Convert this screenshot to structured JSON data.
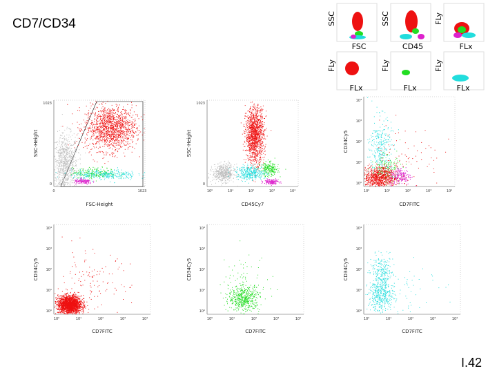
{
  "slide": {
    "title": "CD7/CD34",
    "page_number": "I.42"
  },
  "colors": {
    "lymphs": "#ee1111",
    "monos": "#22dd22",
    "gran_cyan": "#22dddd",
    "magenta": "#dd22cc",
    "gray": "#bdbdbd"
  },
  "gate_icons": [
    {
      "xlabel": "FSC",
      "ylabel": "SSC"
    },
    {
      "xlabel": "CD45",
      "ylabel": "SSC"
    },
    {
      "xlabel": "FLx",
      "ylabel": "FLy"
    },
    {
      "xlabel": "FLx",
      "ylabel": "FLy"
    },
    {
      "xlabel": "FLx",
      "ylabel": "FLy"
    },
    {
      "xlabel": "FLx",
      "ylabel": "FLy"
    }
  ],
  "chart_data": [
    {
      "type": "scatter",
      "id": "fsc-ssc",
      "xlabel": "FSC-Height",
      "ylabel": "SSC-Height",
      "xlim": [
        0,
        1023
      ],
      "ylim": [
        0,
        1023
      ],
      "xticks": [
        "0",
        "1023"
      ],
      "yticks": [
        "0",
        "1023"
      ],
      "series": [
        {
          "color": "gray",
          "cx": 0.12,
          "cy": 0.25,
          "sx": 0.07,
          "sy": 0.18,
          "n": 900
        },
        {
          "color": "lymphs",
          "cx": 0.62,
          "cy": 0.68,
          "sx": 0.14,
          "sy": 0.13,
          "n": 1400
        },
        {
          "color": "monos",
          "cx": 0.45,
          "cy": 0.16,
          "sx": 0.12,
          "sy": 0.03,
          "n": 200
        },
        {
          "color": "gran_cyan",
          "cx": 0.55,
          "cy": 0.14,
          "sx": 0.18,
          "sy": 0.03,
          "n": 300
        },
        {
          "color": "magenta",
          "cx": 0.32,
          "cy": 0.06,
          "sx": 0.05,
          "sy": 0.015,
          "n": 150
        }
      ]
    },
    {
      "type": "scatter",
      "id": "cd45-ssc",
      "xlabel": "CD45Cy7",
      "ylabel": "SSC-Height",
      "xscale": "log",
      "xlim": [
        1,
        10000
      ],
      "ylim": [
        0,
        1023
      ],
      "xticks": [
        "10⁰",
        "10¹",
        "10²",
        "10³",
        "10⁴"
      ],
      "yticks": [
        "0",
        "1023"
      ],
      "series": [
        {
          "color": "gray",
          "cx": 0.18,
          "cy": 0.16,
          "sx": 0.06,
          "sy": 0.05,
          "n": 500
        },
        {
          "color": "lymphs",
          "cx": 0.52,
          "cy": 0.6,
          "sx": 0.05,
          "sy": 0.16,
          "n": 1300
        },
        {
          "color": "monos",
          "cx": 0.68,
          "cy": 0.2,
          "sx": 0.05,
          "sy": 0.04,
          "n": 220
        },
        {
          "color": "gran_cyan",
          "cx": 0.48,
          "cy": 0.16,
          "sx": 0.08,
          "sy": 0.04,
          "n": 350
        },
        {
          "color": "magenta",
          "cx": 0.7,
          "cy": 0.06,
          "sx": 0.04,
          "sy": 0.015,
          "n": 150
        }
      ]
    },
    {
      "type": "scatter",
      "id": "cd7-cd34-all",
      "xlabel": "CD7FITC",
      "ylabel": "CD34Cy5",
      "xscale": "log",
      "yscale": "log",
      "xlim": [
        1,
        10000
      ],
      "ylim": [
        1,
        10000
      ],
      "xticks": [
        "10⁰",
        "10¹",
        "10²",
        "10³",
        "10⁴"
      ],
      "yticks": [
        "10⁰",
        "10¹",
        "10²",
        "10³",
        "10⁴"
      ],
      "series": [
        {
          "color": "gran_cyan",
          "cx": 0.18,
          "cy": 0.42,
          "sx": 0.06,
          "sy": 0.18,
          "n": 300
        },
        {
          "color": "monos",
          "cx": 0.24,
          "cy": 0.18,
          "sx": 0.08,
          "sy": 0.08,
          "n": 200
        },
        {
          "color": "lymphs",
          "cx": 0.16,
          "cy": 0.1,
          "sx": 0.1,
          "sy": 0.06,
          "n": 900
        },
        {
          "color": "magenta",
          "cx": 0.4,
          "cy": 0.12,
          "sx": 0.06,
          "sy": 0.05,
          "n": 200
        },
        {
          "color": "lymphs",
          "cx": 0.45,
          "cy": 0.35,
          "sx": 0.2,
          "sy": 0.18,
          "n": 80
        }
      ]
    },
    {
      "type": "scatter",
      "id": "cd7-cd34-red",
      "xlabel": "CD7FITC",
      "ylabel": "CD34Cy5",
      "xscale": "log",
      "yscale": "log",
      "xlim": [
        1,
        10000
      ],
      "ylim": [
        1,
        10000
      ],
      "xticks": [
        "10⁰",
        "10¹",
        "10²",
        "10³",
        "10⁴"
      ],
      "yticks": [
        "10⁰",
        "10¹",
        "10²",
        "10³",
        "10⁴"
      ],
      "series": [
        {
          "color": "lymphs",
          "cx": 0.16,
          "cy": 0.11,
          "sx": 0.06,
          "sy": 0.05,
          "n": 2200
        },
        {
          "color": "lymphs",
          "cx": 0.38,
          "cy": 0.35,
          "sx": 0.2,
          "sy": 0.18,
          "n": 120
        }
      ]
    },
    {
      "type": "scatter",
      "id": "cd7-cd34-green",
      "xlabel": "CD7FITC",
      "ylabel": "CD34Cy5",
      "xscale": "log",
      "yscale": "log",
      "xlim": [
        1,
        10000
      ],
      "ylim": [
        1,
        10000
      ],
      "xticks": [
        "10⁰",
        "10¹",
        "10²",
        "10³",
        "10⁴"
      ],
      "yticks": [
        "10⁰",
        "10¹",
        "10²",
        "10³",
        "10⁴"
      ],
      "series": [
        {
          "color": "monos",
          "cx": 0.38,
          "cy": 0.18,
          "sx": 0.08,
          "sy": 0.07,
          "n": 500
        },
        {
          "color": "monos",
          "cx": 0.38,
          "cy": 0.4,
          "sx": 0.15,
          "sy": 0.15,
          "n": 60
        }
      ]
    },
    {
      "type": "scatter",
      "id": "cd7-cd34-cyan",
      "xlabel": "CD7FITC",
      "ylabel": "CD34Cy5",
      "xscale": "log",
      "yscale": "log",
      "xlim": [
        1,
        10000
      ],
      "ylim": [
        1,
        10000
      ],
      "xticks": [
        "10⁰",
        "10¹",
        "10²",
        "10³",
        "10⁴"
      ],
      "yticks": [
        "10⁰",
        "10¹",
        "10²",
        "10³",
        "10⁴"
      ],
      "series": [
        {
          "color": "gran_cyan",
          "cx": 0.18,
          "cy": 0.2,
          "sx": 0.07,
          "sy": 0.08,
          "n": 350
        },
        {
          "color": "gran_cyan",
          "cx": 0.18,
          "cy": 0.45,
          "sx": 0.06,
          "sy": 0.1,
          "n": 250
        },
        {
          "color": "gran_cyan",
          "cx": 0.4,
          "cy": 0.35,
          "sx": 0.18,
          "sy": 0.18,
          "n": 60
        }
      ]
    }
  ]
}
